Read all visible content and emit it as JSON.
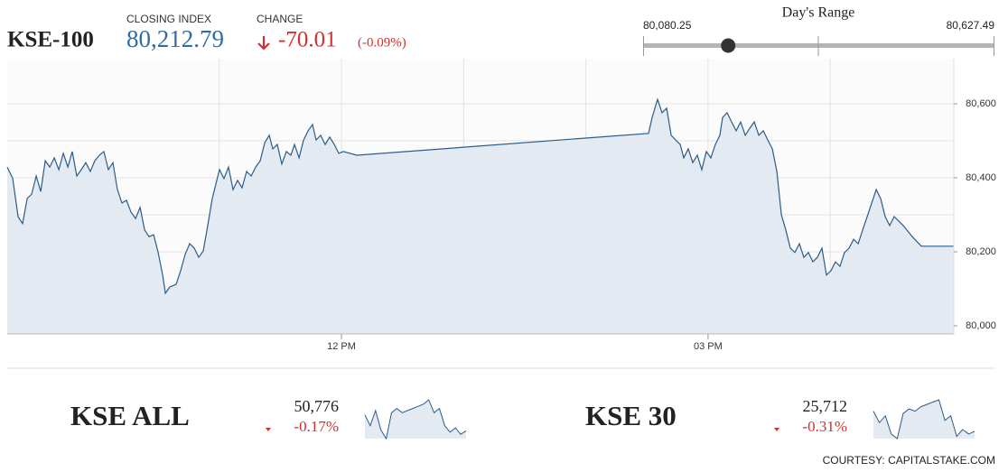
{
  "header": {
    "index_name": "KSE-100",
    "closing_label": "CLOSING INDEX",
    "closing": {
      "value": 80212.79,
      "label": "80,212.79"
    },
    "change_label": "CHANGE",
    "change": -70.01,
    "change_pct": {
      "value": -0.09,
      "label": "(-0.09%)"
    }
  },
  "days_range": {
    "title": "Day's Range",
    "low": {
      "value": 80080.25,
      "label": "80,080.25"
    },
    "high": {
      "value": 80627.49,
      "label": "80,627.49"
    }
  },
  "indices": [
    {
      "name": "KSE ALL",
      "value": {
        "value": 50776,
        "label": "50,776"
      },
      "change": {
        "value": -0.17,
        "label": "-0.17%"
      }
    },
    {
      "name": "KSE 30",
      "value": {
        "value": 25712,
        "label": "25,712"
      },
      "change": {
        "value": -0.31,
        "label": "-0.31%"
      }
    }
  ],
  "footer": "COURTESY: CAPITALSTAKE.COM",
  "chart_data": [
    {
      "type": "area",
      "color": "#2b5c8a",
      "area_color": "#e4eaf1",
      "x": [
        9.265,
        9.31,
        9.354,
        9.391,
        9.428,
        9.465,
        9.502,
        9.539,
        9.576,
        9.613,
        9.65,
        9.687,
        9.724,
        9.761,
        9.797,
        9.834,
        9.871,
        9.908,
        9.945,
        9.982,
        10.019,
        10.056,
        10.093,
        10.13,
        10.167,
        10.204,
        10.241,
        10.278,
        10.315,
        10.352,
        10.389,
        10.426,
        10.463,
        10.5,
        10.537,
        10.559,
        10.596,
        10.647,
        10.684,
        10.721,
        10.758,
        10.795,
        10.832,
        10.869,
        10.906,
        10.943,
        10.98,
        11.002,
        11.039,
        11.076,
        11.113,
        11.15,
        11.187,
        11.224,
        11.261,
        11.298,
        11.335,
        11.372,
        11.409,
        11.438,
        11.475,
        11.512,
        11.549,
        11.586,
        11.616,
        11.653,
        11.69,
        11.727,
        11.763,
        11.793,
        11.83,
        11.867,
        11.904,
        11.941,
        11.978,
        12.015,
        12.126,
        14.513,
        14.542,
        14.587,
        14.624,
        14.661,
        14.698,
        14.735,
        14.772,
        14.801,
        14.838,
        14.875,
        14.912,
        14.949,
        14.986,
        15.023,
        15.06,
        15.097,
        15.119,
        15.156,
        15.193,
        15.23,
        15.267,
        15.304,
        15.341,
        15.378,
        15.415,
        15.452,
        15.489,
        15.526,
        15.563,
        15.6,
        15.636,
        15.673,
        15.71,
        15.747,
        15.784,
        15.821,
        15.858,
        15.895,
        15.932,
        15.969,
        16.006,
        16.043,
        16.08,
        16.117,
        16.154,
        16.191,
        16.228,
        16.265,
        16.302,
        16.339,
        16.376,
        16.412,
        16.449,
        16.486,
        16.523,
        16.597,
        16.671,
        16.745,
        17.011
      ],
      "values": [
        80429,
        80398,
        80295,
        80276,
        80344,
        80356,
        80405,
        80363,
        80446,
        80429,
        80454,
        80422,
        80466,
        80429,
        80471,
        80405,
        80422,
        80441,
        80417,
        80446,
        80461,
        80471,
        80422,
        80441,
        80368,
        80332,
        80339,
        80307,
        80290,
        80320,
        80259,
        80241,
        80246,
        80198,
        80137,
        80088,
        80105,
        80112,
        80149,
        80193,
        80222,
        80210,
        80185,
        80202,
        80271,
        80344,
        80393,
        80422,
        80398,
        80429,
        80368,
        80393,
        80373,
        80417,
        80405,
        80429,
        80446,
        80495,
        80515,
        80478,
        80490,
        80437,
        80471,
        80461,
        80490,
        80454,
        80502,
        80527,
        80544,
        80502,
        80515,
        80490,
        80510,
        80490,
        80466,
        80471,
        80461,
        80520,
        80563,
        80612,
        80576,
        80588,
        80515,
        80502,
        80490,
        80454,
        80478,
        80441,
        80461,
        80422,
        80471,
        80454,
        80490,
        80515,
        80563,
        80576,
        80551,
        80527,
        80551,
        80515,
        80534,
        80551,
        80515,
        80527,
        80502,
        80478,
        80417,
        80300,
        80259,
        80210,
        80198,
        80222,
        80185,
        80198,
        80173,
        80185,
        80210,
        80137,
        80149,
        80173,
        80161,
        80198,
        80210,
        80234,
        80222,
        80259,
        80295,
        80332,
        80368,
        80344,
        80295,
        80271,
        80295,
        80271,
        80241,
        80215,
        80215
      ],
      "xlim": [
        9.265,
        17.011
      ],
      "ylim": [
        79978,
        80722
      ],
      "xticks": [
        {
          "value": 12,
          "label": "12 PM"
        },
        {
          "value": 15,
          "label": "03 PM"
        }
      ],
      "yticks": [
        {
          "value": 80000,
          "label": "80,000"
        },
        {
          "value": 80200,
          "label": "80,200"
        },
        {
          "value": 80400,
          "label": "80,400"
        },
        {
          "value": 80600,
          "label": "80,600"
        }
      ],
      "xgrid": [
        11,
        12,
        13,
        14,
        15,
        16
      ],
      "ygrid": [
        80000,
        80100,
        80200,
        80300,
        80400,
        80500,
        80600
      ],
      "grid": true
    },
    {
      "type": "sparkline",
      "color": "#2b5c8a",
      "area_color": "#e4eaf1",
      "values": [
        50850,
        50800,
        50870,
        50780,
        50740,
        50860,
        50880,
        50860,
        50870,
        50880,
        50890,
        50900,
        50920,
        50860,
        50880,
        50800,
        50770,
        50790,
        50760,
        50776
      ]
    },
    {
      "type": "sparkline",
      "color": "#2b5c8a",
      "area_color": "#e4eaf1",
      "values": [
        25800,
        25750,
        25780,
        25700,
        25680,
        25790,
        25810,
        25800,
        25820,
        25830,
        25840,
        25850,
        25760,
        25780,
        25690,
        25720,
        25700,
        25712
      ]
    }
  ]
}
